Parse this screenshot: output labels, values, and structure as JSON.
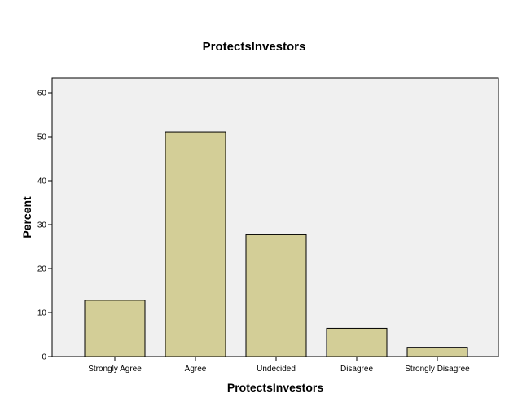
{
  "chart_data": {
    "type": "bar",
    "title": "ProtectsInvestors",
    "xlabel": "ProtectsInvestors",
    "ylabel": "Percent",
    "categories": [
      "Strongly Agree",
      "Agree",
      "Undecided",
      "Disagree",
      "Strongly Disagree"
    ],
    "values": [
      12.8,
      51.1,
      27.7,
      6.4,
      2.1
    ],
    "ylim": [
      0,
      60
    ],
    "yticks": [
      "0",
      "10",
      "20",
      "30",
      "40",
      "50",
      "60"
    ],
    "grid": false,
    "colors": {
      "bar_fill": "#d3ce97",
      "plot_background": "#f0f0f0",
      "bar_stroke": "#000000"
    }
  }
}
